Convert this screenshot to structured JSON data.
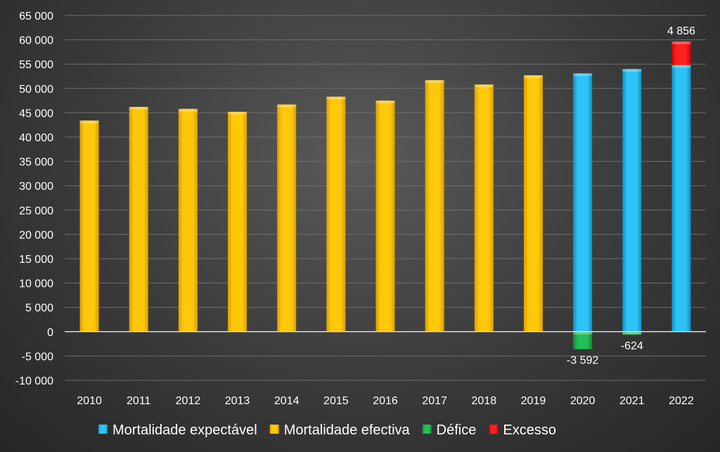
{
  "chart_data": {
    "type": "bar",
    "stacked": true,
    "categories": [
      "2010",
      "2011",
      "2012",
      "2013",
      "2014",
      "2015",
      "2016",
      "2017",
      "2018",
      "2019",
      "2020",
      "2021",
      "2022"
    ],
    "ylim": [
      -10000,
      65000
    ],
    "ytick_step": 5000,
    "ytick_labels": [
      "65 000",
      "60 000",
      "55 000",
      "50 000",
      "45 000",
      "40 000",
      "35 000",
      "30 000",
      "25 000",
      "20 000",
      "15 000",
      "10 000",
      "5 000",
      "0",
      "-5 000",
      "-10 000"
    ],
    "grid": true,
    "legend_position": "bottom",
    "series": [
      {
        "name": "Mortalidade expectável",
        "color": "#1fb6f0",
        "values": [
          null,
          null,
          null,
          null,
          null,
          null,
          null,
          null,
          null,
          null,
          53100,
          54000,
          54800
        ]
      },
      {
        "name": "Mortalidade efectiva",
        "color": "#ffc000",
        "values": [
          43400,
          46200,
          45800,
          45200,
          46700,
          48300,
          47500,
          51700,
          50800,
          52700,
          null,
          null,
          null
        ]
      },
      {
        "name": "Défice",
        "color": "#1eb04a",
        "values": [
          null,
          null,
          null,
          null,
          null,
          null,
          null,
          null,
          null,
          null,
          -3592,
          -624,
          null
        ]
      },
      {
        "name": "Excesso",
        "color": "#ff1a1a",
        "values": [
          null,
          null,
          null,
          null,
          null,
          null,
          null,
          null,
          null,
          null,
          null,
          null,
          4856
        ]
      }
    ],
    "data_labels": [
      {
        "category": "2020",
        "series": "Défice",
        "text": "-3 592"
      },
      {
        "category": "2021",
        "series": "Défice",
        "text": "-624"
      },
      {
        "category": "2022",
        "series": "Excesso",
        "text": "4 856"
      }
    ]
  }
}
